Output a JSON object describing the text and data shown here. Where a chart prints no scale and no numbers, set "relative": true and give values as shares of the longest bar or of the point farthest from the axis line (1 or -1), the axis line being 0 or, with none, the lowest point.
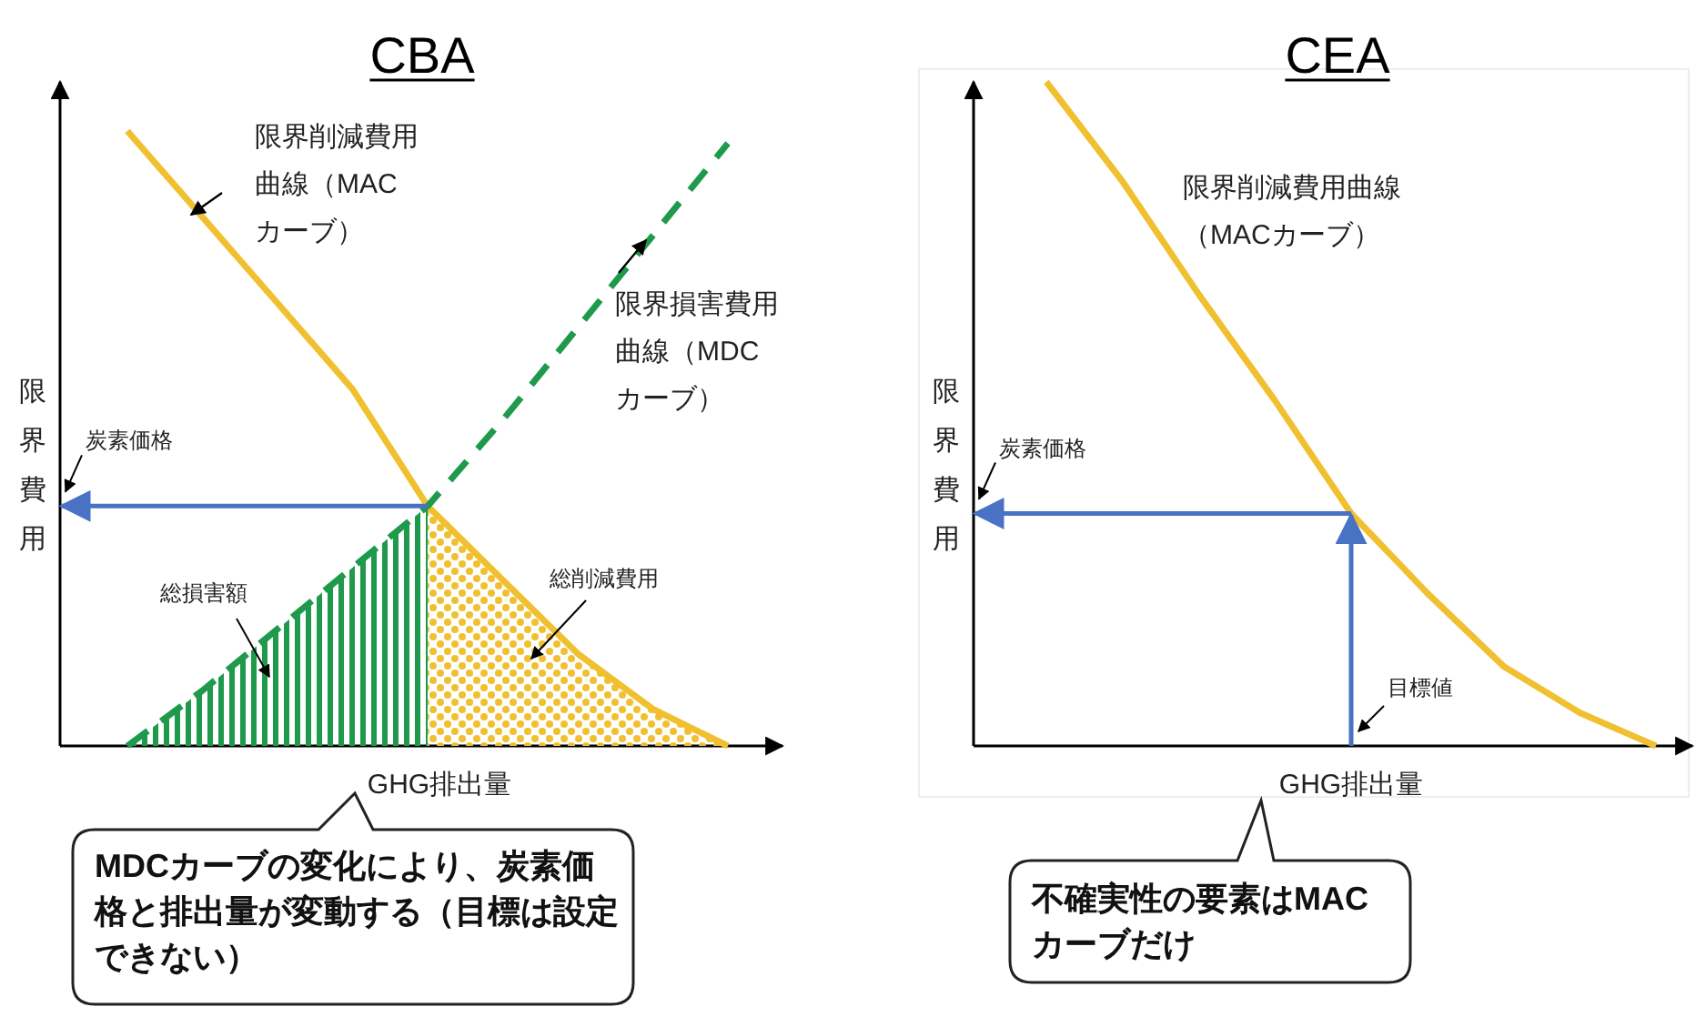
{
  "chart_data": [
    {
      "type": "line",
      "title": "CBA",
      "xlabel": "GHG排出量",
      "ylabel": "限界費用",
      "relative": true,
      "marker": "none",
      "categories": [
        null,
        null,
        null,
        null,
        null,
        null,
        null,
        null,
        null
      ],
      "series": [
        {
          "name": "限界削減費用曲線（MACカーブ）",
          "color": "#f0c030",
          "line_style": "solid",
          "values": [
            1,
            0.86,
            0.72,
            0.58,
            0.39,
            0.27,
            0.15,
            0.06,
            0
          ]
        },
        {
          "name": "限界損害費用曲線（MDCカーブ）",
          "color": "#1f9a4c",
          "line_style": "dashed",
          "values": [
            0,
            0.09,
            0.19,
            0.29,
            0.39,
            0.53,
            0.68,
            0.83,
            0.98
          ]
        },
        {
          "type": "area",
          "color": "#1f9a4c",
          "values": [
            0,
            0.09,
            0.19,
            0.29,
            0.39,
            null,
            null,
            null,
            null
          ]
        },
        {
          "type": "area",
          "color": "#f0c030",
          "values": [
            null,
            null,
            null,
            null,
            0.39,
            0.27,
            0.15,
            0.06,
            0
          ]
        }
      ],
      "ref_lines": [
        {
          "axis": "y",
          "value": 0.39,
          "label": "炭素価格",
          "color": "#4a72c4"
        }
      ],
      "annotations": [
        "総損害額",
        "総削減費用",
        "MDCカーブの変化により、炭素価格と排出量が変動する（目標は設定できない）"
      ]
    },
    {
      "type": "line",
      "title": "CEA",
      "xlabel": "GHG排出量",
      "ylabel": "限界費用",
      "relative": true,
      "marker": "none",
      "categories": [
        null,
        null,
        null,
        null,
        null,
        null,
        null,
        null,
        null
      ],
      "series": [
        {
          "name": "限界削減費用曲線（MACカーブ）",
          "color": "#f0c030",
          "line_style": "solid",
          "values": [
            1,
            0.85,
            0.68,
            0.52,
            0.35,
            0.23,
            0.12,
            0.05,
            0
          ]
        }
      ],
      "ref_lines": [
        {
          "axis": "y",
          "value": 0.35,
          "label": "炭素価格",
          "color": "#4a72c4"
        }
      ],
      "annotations": [
        "目標値",
        "不確実性の要素はMACカーブだけ"
      ]
    }
  ]
}
